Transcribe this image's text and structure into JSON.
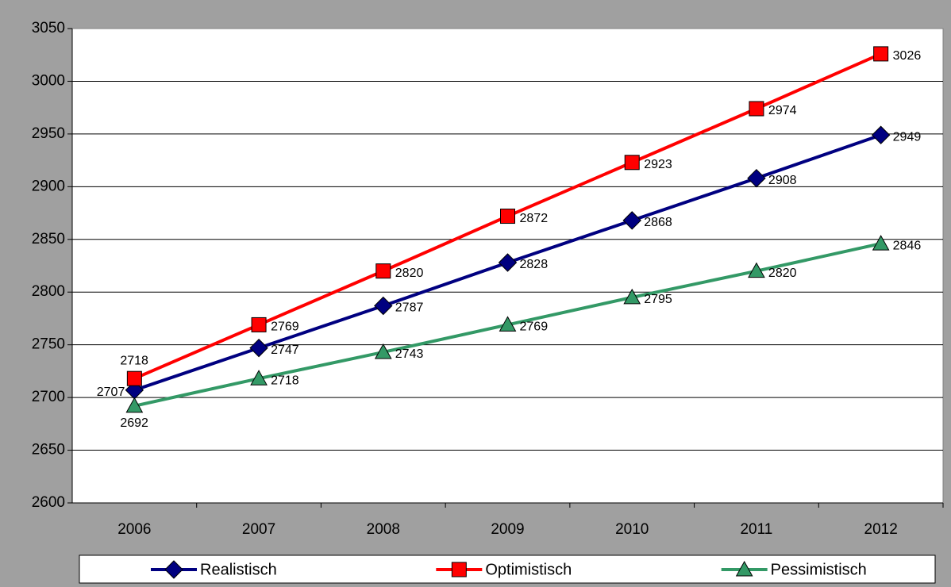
{
  "chart_data": {
    "type": "line",
    "categories": [
      "2006",
      "2007",
      "2008",
      "2009",
      "2010",
      "2011",
      "2012"
    ],
    "series": [
      {
        "name": "Realistisch",
        "color": "#000080",
        "marker": "diamond",
        "values": [
          2707,
          2747,
          2787,
          2828,
          2868,
          2908,
          2949
        ]
      },
      {
        "name": "Optimistisch",
        "color": "#ff0000",
        "marker": "square",
        "values": [
          2718,
          2769,
          2820,
          2872,
          2923,
          2974,
          3026
        ]
      },
      {
        "name": "Pessimistisch",
        "color": "#339966",
        "marker": "triangle",
        "values": [
          2692,
          2718,
          2743,
          2769,
          2795,
          2820,
          2846
        ]
      }
    ],
    "ylim": [
      2600,
      3050
    ],
    "yticks": [
      2600,
      2650,
      2700,
      2750,
      2800,
      2850,
      2900,
      2950,
      3000,
      3050
    ],
    "grid": true,
    "legend": "bottom",
    "data_labels": true
  }
}
